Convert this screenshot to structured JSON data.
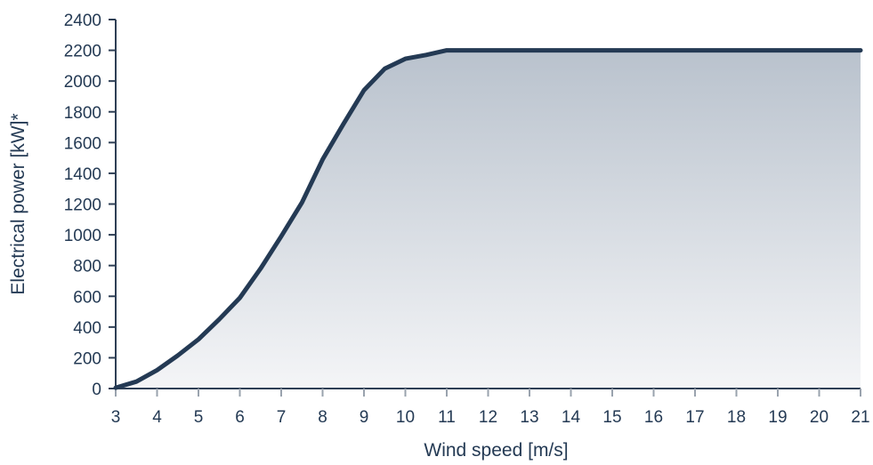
{
  "chart_data": {
    "type": "area",
    "xlabel": "Wind speed [m/s]",
    "ylabel": "Electrical power [kW]*",
    "xlim": [
      3,
      21
    ],
    "ylim": [
      0,
      2400
    ],
    "x_ticks": [
      3,
      4,
      5,
      6,
      7,
      8,
      9,
      10,
      11,
      12,
      13,
      14,
      15,
      16,
      17,
      18,
      19,
      20,
      21
    ],
    "y_ticks": [
      0,
      200,
      400,
      600,
      800,
      1000,
      1200,
      1400,
      1600,
      1800,
      2000,
      2200,
      2400
    ],
    "grid": false,
    "legend": "none",
    "series": [
      {
        "x": [
          3,
          3.5,
          4,
          4.5,
          5,
          5.5,
          6,
          6.5,
          7,
          7.5,
          8,
          8.5,
          9,
          9.5,
          10,
          10.5,
          11,
          12,
          13,
          14,
          15,
          16,
          17,
          18,
          19,
          20,
          21
        ],
        "y": [
          5,
          45,
          120,
          215,
          320,
          450,
          590,
          780,
          990,
          1210,
          1490,
          1720,
          1940,
          2080,
          2145,
          2170,
          2200,
          2200,
          2200,
          2200,
          2200,
          2200,
          2200,
          2200,
          2200,
          2200,
          2200
        ]
      }
    ],
    "colors": {
      "line": "#243a54",
      "axis": "#2e3f55",
      "text": "#243a54",
      "fill_top": "#b9c2cd",
      "fill_bottom": "#f4f5f7"
    }
  }
}
